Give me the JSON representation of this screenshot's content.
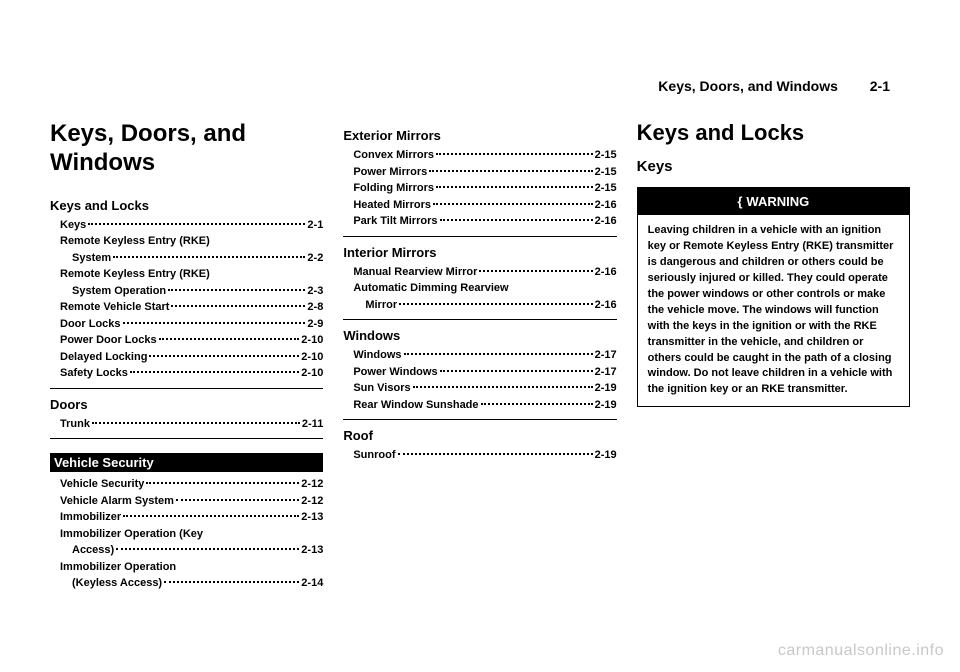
{
  "header": {
    "title": "Keys, Doors, and Windows",
    "pagenum": "2-1"
  },
  "col1": {
    "main_title": "Keys, Doors, and Windows",
    "sections": [
      {
        "title": "Keys and Locks",
        "inverse": false,
        "items": [
          {
            "label": "Keys",
            "page": "2-1",
            "indent": false
          },
          {
            "label": "Remote Keyless Entry (RKE)",
            "page": "",
            "indent": false
          },
          {
            "label": "System",
            "page": "2-2",
            "indent": true
          },
          {
            "label": "Remote Keyless Entry (RKE)",
            "page": "",
            "indent": false
          },
          {
            "label": "System Operation",
            "page": "2-3",
            "indent": true
          },
          {
            "label": "Remote Vehicle Start",
            "page": "2-8",
            "indent": false
          },
          {
            "label": "Door Locks",
            "page": "2-9",
            "indent": false
          },
          {
            "label": "Power Door Locks",
            "page": "2-10",
            "indent": false
          },
          {
            "label": "Delayed Locking",
            "page": "2-10",
            "indent": false
          },
          {
            "label": "Safety Locks",
            "page": "2-10",
            "indent": false
          }
        ]
      },
      {
        "title": "Doors",
        "inverse": false,
        "items": [
          {
            "label": "Trunk",
            "page": "2-11",
            "indent": false
          }
        ]
      },
      {
        "title": "Vehicle Security",
        "inverse": true,
        "items": [
          {
            "label": "Vehicle Security",
            "page": "2-12",
            "indent": false
          },
          {
            "label": "Vehicle Alarm System",
            "page": "2-12",
            "indent": false
          },
          {
            "label": "Immobilizer",
            "page": "2-13",
            "indent": false
          },
          {
            "label": "Immobilizer Operation (Key",
            "page": "",
            "indent": false
          },
          {
            "label": "Access)",
            "page": "2-13",
            "indent": true
          },
          {
            "label": "Immobilizer Operation",
            "page": "",
            "indent": false
          },
          {
            "label": "(Keyless Access)",
            "page": "2-14",
            "indent": true
          }
        ]
      }
    ]
  },
  "col2": {
    "sections": [
      {
        "title": "Exterior Mirrors",
        "inverse": false,
        "items": [
          {
            "label": "Convex Mirrors",
            "page": "2-15",
            "indent": false
          },
          {
            "label": "Power Mirrors",
            "page": "2-15",
            "indent": false
          },
          {
            "label": "Folding Mirrors",
            "page": "2-15",
            "indent": false
          },
          {
            "label": "Heated Mirrors",
            "page": "2-16",
            "indent": false
          },
          {
            "label": "Park Tilt Mirrors",
            "page": "2-16",
            "indent": false
          }
        ]
      },
      {
        "title": "Interior Mirrors",
        "inverse": false,
        "items": [
          {
            "label": "Manual Rearview Mirror",
            "page": "2-16",
            "indent": false
          },
          {
            "label": "Automatic Dimming Rearview",
            "page": "",
            "indent": false
          },
          {
            "label": "Mirror",
            "page": "2-16",
            "indent": true
          }
        ]
      },
      {
        "title": "Windows",
        "inverse": false,
        "items": [
          {
            "label": "Windows",
            "page": "2-17",
            "indent": false
          },
          {
            "label": "Power Windows",
            "page": "2-17",
            "indent": false
          },
          {
            "label": "Sun Visors",
            "page": "2-19",
            "indent": false
          },
          {
            "label": "Rear Window Sunshade",
            "page": "2-19",
            "indent": false
          }
        ]
      },
      {
        "title": "Roof",
        "inverse": false,
        "items": [
          {
            "label": "Sunroof",
            "page": "2-19",
            "indent": false
          }
        ]
      }
    ]
  },
  "col3": {
    "title": "Keys and Locks",
    "subtitle": "Keys",
    "warning_label": "WARNING",
    "warning_text": "Leaving children in a vehicle with an ignition key or Remote Keyless Entry (RKE) transmitter is dangerous and children or others could be seriously injured or killed. They could operate the power windows or other controls or make the vehicle move. The windows will function with the keys in the ignition or with the RKE transmitter in the vehicle, and children or others could be caught in the path of a closing window. Do not leave children in a vehicle with the ignition key or an RKE transmitter."
  },
  "watermark": "carmanualsonline.info"
}
